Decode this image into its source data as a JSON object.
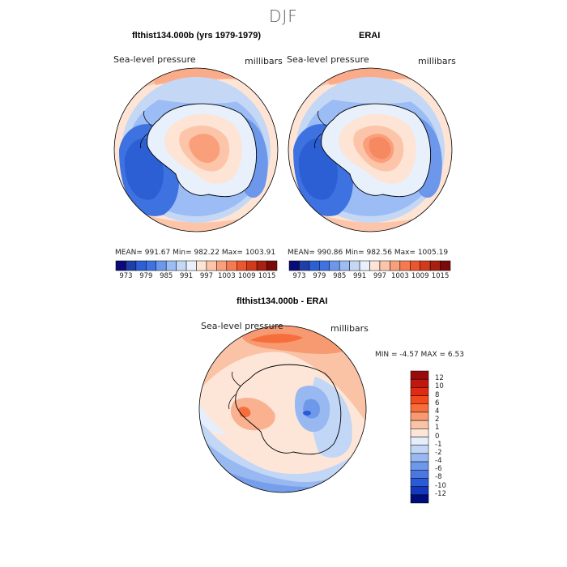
{
  "figure": {
    "title": "DJF"
  },
  "panels": [
    {
      "title": "flthist134.000b (yrs 1979-1979)",
      "field": "Sea-level pressure",
      "units": "millibars",
      "stats": "MEAN= 991.67   Min= 982.22   Max= 1003.91"
    },
    {
      "title": "ERAI",
      "field": "Sea-level pressure",
      "units": "millibars",
      "stats": "MEAN= 990.86   Min= 982.56   Max= 1005.19"
    },
    {
      "title": "flthist134.000b - ERAI",
      "field": "Sea-level pressure",
      "units": "millibars",
      "stats": "MIN =   -4.57 MAX =    6.53"
    }
  ],
  "colorbar_top": {
    "labels": [
      "973",
      "979",
      "985",
      "991",
      "997",
      "1003",
      "1009",
      "1015"
    ],
    "colors": [
      "#0a0a78",
      "#1f3fa8",
      "#2b5fd3",
      "#3d72e0",
      "#6c97ea",
      "#9bbcf4",
      "#c4d8f6",
      "#e8f0fb",
      "#fde4d5",
      "#fcc5aa",
      "#f9a07a",
      "#f47a52",
      "#ea5630",
      "#d23a1c",
      "#a82010",
      "#7a0a0a"
    ]
  },
  "colorbar_diff": {
    "labels": [
      "12",
      "10",
      "8",
      "6",
      "4",
      "2",
      "1",
      "0",
      "-1",
      "-2",
      "-4",
      "-6",
      "-8",
      "-10",
      "-12"
    ],
    "colors": [
      "#9a0c0c",
      "#c0180f",
      "#e02a12",
      "#f24a1a",
      "#f66e3c",
      "#f79a72",
      "#fac3a6",
      "#fde6d8",
      "#e6eefb",
      "#c2d6f6",
      "#97b8f0",
      "#6e98ea",
      "#4a78e0",
      "#2a5ad6",
      "#1338c0",
      "#000c7a"
    ]
  }
}
